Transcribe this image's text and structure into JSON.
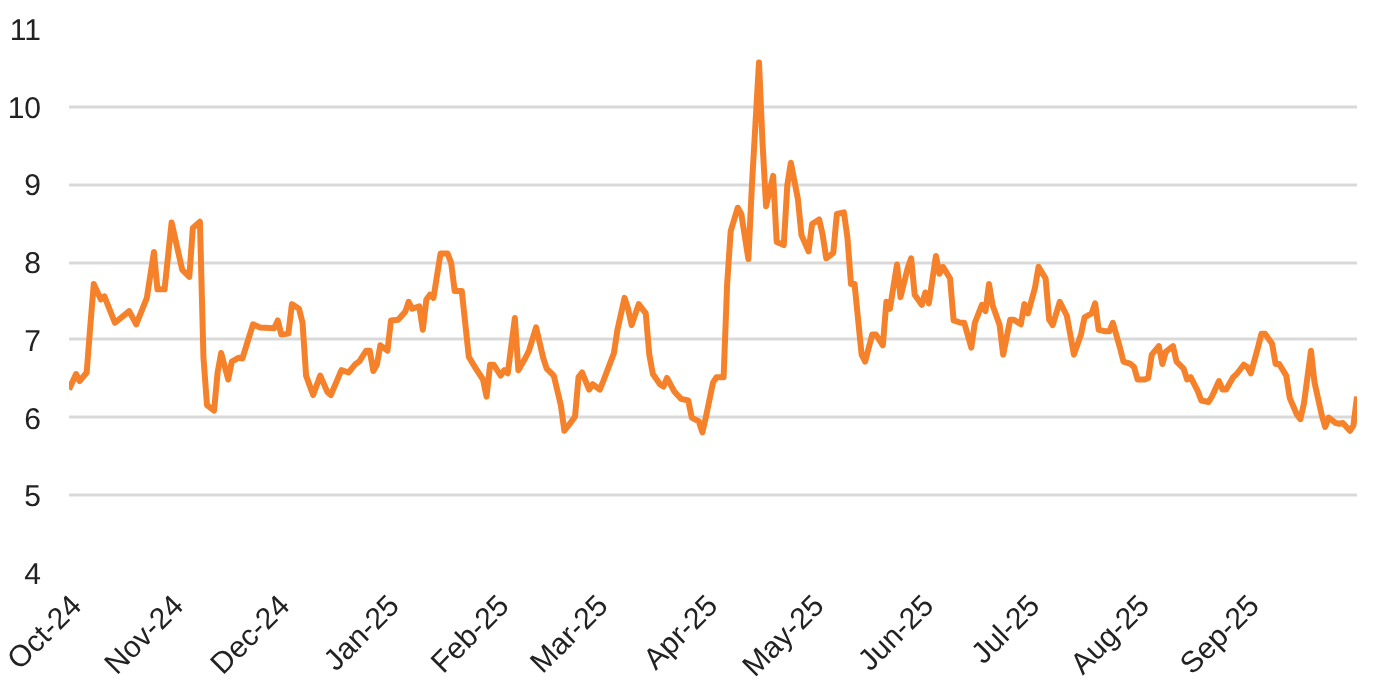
{
  "chart_data": {
    "type": "line",
    "x": [
      "2024-10-01",
      "2024-10-03",
      "2024-10-04",
      "2024-10-06",
      "2024-10-07",
      "2024-10-08",
      "2024-10-10",
      "2024-10-11",
      "2024-10-14",
      "2024-10-18",
      "2024-10-20",
      "2024-10-23",
      "2024-10-25",
      "2024-10-26",
      "2024-10-28",
      "2024-10-30",
      "2024-11-02",
      "2024-11-04",
      "2024-11-05",
      "2024-11-07",
      "2024-11-08",
      "2024-11-09",
      "2024-11-11",
      "2024-11-12",
      "2024-11-13",
      "2024-11-15",
      "2024-11-16",
      "2024-11-18",
      "2024-11-19",
      "2024-11-22",
      "2024-11-24",
      "2024-11-28",
      "2024-11-29",
      "2024-11-30",
      "2024-12-02",
      "2024-12-03",
      "2024-12-05",
      "2024-12-06",
      "2024-12-07",
      "2024-12-09",
      "2024-12-11",
      "2024-12-13",
      "2024-12-14",
      "2024-12-17",
      "2024-12-19",
      "2024-12-21",
      "2024-12-22",
      "2024-12-24",
      "2024-12-25",
      "2024-12-26",
      "2024-12-27",
      "2024-12-28",
      "2024-12-30",
      "2024-12-31",
      "2025-01-02",
      "2025-01-04",
      "2025-01-05",
      "2025-01-06",
      "2025-01-08",
      "2025-01-09",
      "2025-01-10",
      "2025-01-11",
      "2025-01-12",
      "2025-01-14",
      "2025-01-16",
      "2025-01-17",
      "2025-01-18",
      "2025-01-20",
      "2025-01-22",
      "2025-01-24",
      "2025-01-26",
      "2025-01-27",
      "2025-01-28",
      "2025-01-29",
      "2025-01-31",
      "2025-02-01",
      "2025-02-02",
      "2025-02-04",
      "2025-02-05",
      "2025-02-07",
      "2025-02-08",
      "2025-02-10",
      "2025-02-12",
      "2025-02-13",
      "2025-02-15",
      "2025-02-17",
      "2025-02-18",
      "2025-02-19",
      "2025-02-21",
      "2025-02-22",
      "2025-02-23",
      "2025-02-25",
      "2025-02-26",
      "2025-02-28",
      "2025-03-01",
      "2025-03-04",
      "2025-03-05",
      "2025-03-07",
      "2025-03-08",
      "2025-03-09",
      "2025-03-11",
      "2025-03-13",
      "2025-03-14",
      "2025-03-15",
      "2025-03-17",
      "2025-03-18",
      "2025-03-19",
      "2025-03-21",
      "2025-03-23",
      "2025-03-25",
      "2025-03-26",
      "2025-03-28",
      "2025-03-29",
      "2025-03-30",
      "2025-04-01",
      "2025-04-02",
      "2025-04-04",
      "2025-04-05",
      "2025-04-06",
      "2025-04-08",
      "2025-04-09",
      "2025-04-11",
      "2025-04-12",
      "2025-04-14",
      "2025-04-15",
      "2025-04-16",
      "2025-04-18",
      "2025-04-19",
      "2025-04-21",
      "2025-04-22",
      "2025-04-23",
      "2025-04-25",
      "2025-04-26",
      "2025-04-28",
      "2025-04-29",
      "2025-05-01",
      "2025-05-02",
      "2025-05-03",
      "2025-05-05",
      "2025-05-06",
      "2025-05-08",
      "2025-05-09",
      "2025-05-10",
      "2025-05-11",
      "2025-05-13",
      "2025-05-14",
      "2025-05-16",
      "2025-05-17",
      "2025-05-19",
      "2025-05-20",
      "2025-05-21",
      "2025-05-23",
      "2025-05-24",
      "2025-05-26",
      "2025-05-27",
      "2025-05-28",
      "2025-05-30",
      "2025-05-31",
      "2025-06-01",
      "2025-06-03",
      "2025-06-04",
      "2025-06-05",
      "2025-06-07",
      "2025-06-08",
      "2025-06-10",
      "2025-06-11",
      "2025-06-13",
      "2025-06-14",
      "2025-06-16",
      "2025-06-17",
      "2025-06-18",
      "2025-06-19",
      "2025-06-21",
      "2025-06-22",
      "2025-06-24",
      "2025-06-25",
      "2025-06-27",
      "2025-06-28",
      "2025-06-29",
      "2025-07-01",
      "2025-07-02",
      "2025-07-04",
      "2025-07-05",
      "2025-07-06",
      "2025-07-08",
      "2025-07-10",
      "2025-07-12",
      "2025-07-14",
      "2025-07-15",
      "2025-07-17",
      "2025-07-18",
      "2025-07-19",
      "2025-07-21",
      "2025-07-22",
      "2025-07-23",
      "2025-07-25",
      "2025-07-26",
      "2025-07-28",
      "2025-07-29",
      "2025-07-30",
      "2025-08-01",
      "2025-08-02",
      "2025-08-03",
      "2025-08-05",
      "2025-08-06",
      "2025-08-07",
      "2025-08-09",
      "2025-08-10",
      "2025-08-12",
      "2025-08-13",
      "2025-08-14",
      "2025-08-16",
      "2025-08-17",
      "2025-08-19",
      "2025-08-20",
      "2025-08-22",
      "2025-08-23",
      "2025-08-24",
      "2025-08-26",
      "2025-08-27",
      "2025-08-29",
      "2025-08-30",
      "2025-08-31",
      "2025-09-02",
      "2025-09-03",
      "2025-09-04",
      "2025-09-06",
      "2025-09-07",
      "2025-09-08",
      "2025-09-10",
      "2025-09-11",
      "2025-09-13",
      "2025-09-14",
      "2025-09-15",
      "2025-09-17",
      "2025-09-18",
      "2025-09-20",
      "2025-09-21",
      "2025-09-22",
      "2025-09-24",
      "2025-09-25",
      "2025-09-26",
      "2025-09-28",
      "2025-09-29",
      "2025-09-30"
    ],
    "series": [
      {
        "color": "#f5822a",
        "values": [
          6.36,
          6.56,
          6.47,
          6.58,
          7.17,
          7.72,
          7.52,
          7.56,
          7.22,
          7.37,
          7.2,
          7.54,
          8.13,
          7.65,
          7.65,
          8.51,
          7.9,
          7.81,
          8.44,
          8.52,
          6.77,
          6.16,
          6.09,
          6.58,
          6.83,
          6.49,
          6.72,
          6.77,
          6.76,
          7.2,
          7.16,
          7.15,
          7.25,
          7.07,
          7.08,
          7.46,
          7.4,
          7.22,
          6.54,
          6.29,
          6.54,
          6.33,
          6.29,
          6.61,
          6.58,
          6.69,
          6.72,
          6.86,
          6.86,
          6.6,
          6.68,
          6.93,
          6.86,
          7.25,
          7.26,
          7.36,
          7.49,
          7.4,
          7.43,
          7.13,
          7.52,
          7.58,
          7.54,
          8.11,
          8.11,
          7.99,
          7.63,
          7.63,
          6.78,
          6.63,
          6.49,
          6.27,
          6.68,
          6.68,
          6.54,
          6.61,
          6.57,
          7.28,
          6.61,
          6.77,
          6.86,
          7.16,
          6.77,
          6.63,
          6.54,
          6.16,
          5.83,
          5.89,
          6.01,
          6.52,
          6.58,
          6.36,
          6.43,
          6.36,
          6.47,
          6.83,
          7.13,
          7.54,
          7.4,
          7.19,
          7.46,
          7.34,
          6.81,
          6.56,
          6.43,
          6.4,
          6.51,
          6.34,
          6.24,
          6.22,
          6.0,
          5.95,
          5.81,
          6.01,
          6.45,
          6.52,
          6.52,
          7.72,
          8.4,
          8.7,
          8.62,
          8.04,
          8.99,
          10.57,
          9.53,
          8.72,
          9.11,
          8.26,
          8.22,
          8.99,
          9.28,
          8.81,
          8.35,
          8.14,
          8.49,
          8.55,
          8.35,
          8.05,
          8.12,
          8.62,
          8.64,
          8.31,
          7.72,
          7.72,
          6.81,
          6.72,
          7.07,
          7.07,
          6.93,
          7.49,
          7.4,
          7.97,
          7.55,
          7.92,
          8.05,
          7.58,
          7.45,
          7.61,
          7.47,
          8.08,
          7.85,
          7.94,
          7.79,
          7.25,
          7.22,
          7.22,
          6.9,
          7.22,
          7.45,
          7.37,
          7.72,
          7.45,
          7.19,
          6.81,
          7.26,
          7.26,
          7.2,
          7.46,
          7.34,
          7.67,
          7.94,
          7.79,
          7.26,
          7.19,
          7.49,
          7.31,
          6.81,
          7.07,
          7.29,
          7.34,
          7.47,
          7.13,
          7.11,
          7.11,
          7.22,
          6.9,
          6.72,
          6.69,
          6.65,
          6.49,
          6.49,
          6.51,
          6.81,
          6.92,
          6.69,
          6.85,
          6.92,
          6.72,
          6.63,
          6.49,
          6.52,
          6.34,
          6.22,
          6.2,
          6.27,
          6.47,
          6.36,
          6.36,
          6.52,
          6.56,
          6.68,
          6.65,
          6.57,
          6.9,
          7.08,
          7.08,
          6.95,
          6.69,
          6.69,
          6.54,
          6.25,
          6.04,
          5.98,
          6.18,
          6.86,
          6.45,
          6.04,
          5.88,
          6.0,
          5.93,
          5.92,
          5.93,
          5.83,
          5.9,
          6.27
        ]
      }
    ],
    "xlim": [
      "2024-10-01",
      "2025-09-30"
    ],
    "xticks": [
      {
        "value": "2024-10-01",
        "label": "Oct-24"
      },
      {
        "value": "2024-11-01",
        "label": "Nov-24"
      },
      {
        "value": "2024-12-01",
        "label": "Dec-24"
      },
      {
        "value": "2025-01-01",
        "label": "Jan-25"
      },
      {
        "value": "2025-02-01",
        "label": "Feb-25"
      },
      {
        "value": "2025-03-01",
        "label": "Mar-25"
      },
      {
        "value": "2025-04-01",
        "label": "Apr-25"
      },
      {
        "value": "2025-05-01",
        "label": "May-25"
      },
      {
        "value": "2025-06-01",
        "label": "Jun-25"
      },
      {
        "value": "2025-07-01",
        "label": "Jul-25"
      },
      {
        "value": "2025-08-01",
        "label": "Aug-25"
      },
      {
        "value": "2025-09-01",
        "label": "Sep-25"
      }
    ],
    "ylim": [
      4,
      11
    ],
    "yticks": [
      4,
      5,
      6,
      7,
      8,
      9,
      10,
      11
    ],
    "grid": "y",
    "line_style": "solid"
  }
}
